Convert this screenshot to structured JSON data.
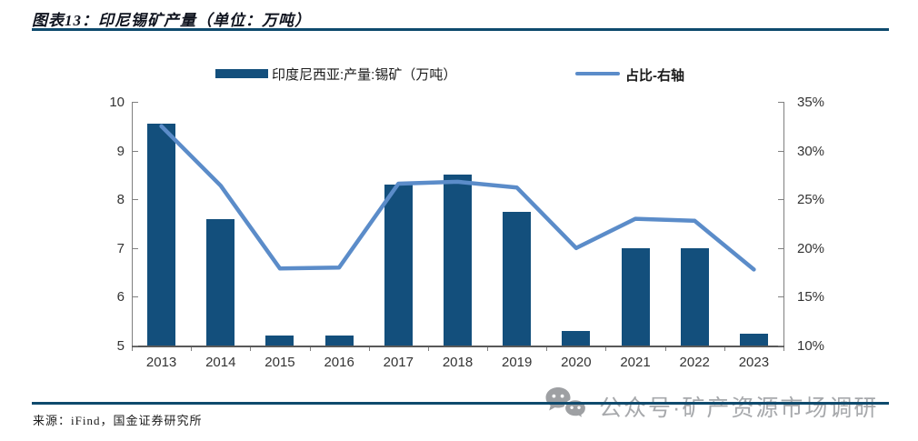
{
  "header": {
    "title": "图表13：印尼锡矿产量（单位：万吨）"
  },
  "legend": {
    "bar_label": "印度尼西亚:产量:锡矿（万吨）",
    "line_label": "占比-右轴"
  },
  "footer": {
    "source": "来源：iFind，国金证券研究所"
  },
  "watermark": {
    "text": "公众号·矿产资源市场调研",
    "icon": "wechat-bubbles-icon"
  },
  "colors": {
    "bar": "#134f7c",
    "line": "#5b8cc9",
    "rule": "#0e4a6d",
    "axis": "#808080",
    "watermark": "#a7a9ac"
  },
  "chart_data": {
    "type": "bar",
    "subtype": "bar+line-dual-axis",
    "title": "印尼锡矿产量（单位：万吨）",
    "categories": [
      "2013",
      "2014",
      "2015",
      "2016",
      "2017",
      "2018",
      "2019",
      "2020",
      "2021",
      "2022",
      "2023"
    ],
    "series": [
      {
        "name": "印度尼西亚:产量:锡矿（万吨）",
        "type": "bar",
        "axis": "left",
        "values": [
          9.55,
          7.6,
          5.2,
          5.2,
          8.3,
          8.5,
          7.75,
          5.3,
          7.0,
          7.0,
          5.25
        ]
      },
      {
        "name": "占比-右轴",
        "type": "line",
        "axis": "right",
        "values": [
          32.5,
          26.4,
          17.9,
          18.0,
          26.6,
          26.8,
          26.2,
          20.0,
          23.0,
          22.8,
          17.8
        ]
      }
    ],
    "left_axis": {
      "min": 5,
      "max": 10,
      "tick_labels": [
        "10",
        "9",
        "8",
        "7",
        "6",
        "5"
      ]
    },
    "right_axis": {
      "min": 10,
      "max": 35,
      "tick_labels": [
        "35%",
        "30%",
        "25%",
        "20%",
        "15%",
        "10%"
      ]
    },
    "grid": false,
    "legend_position": "top"
  }
}
